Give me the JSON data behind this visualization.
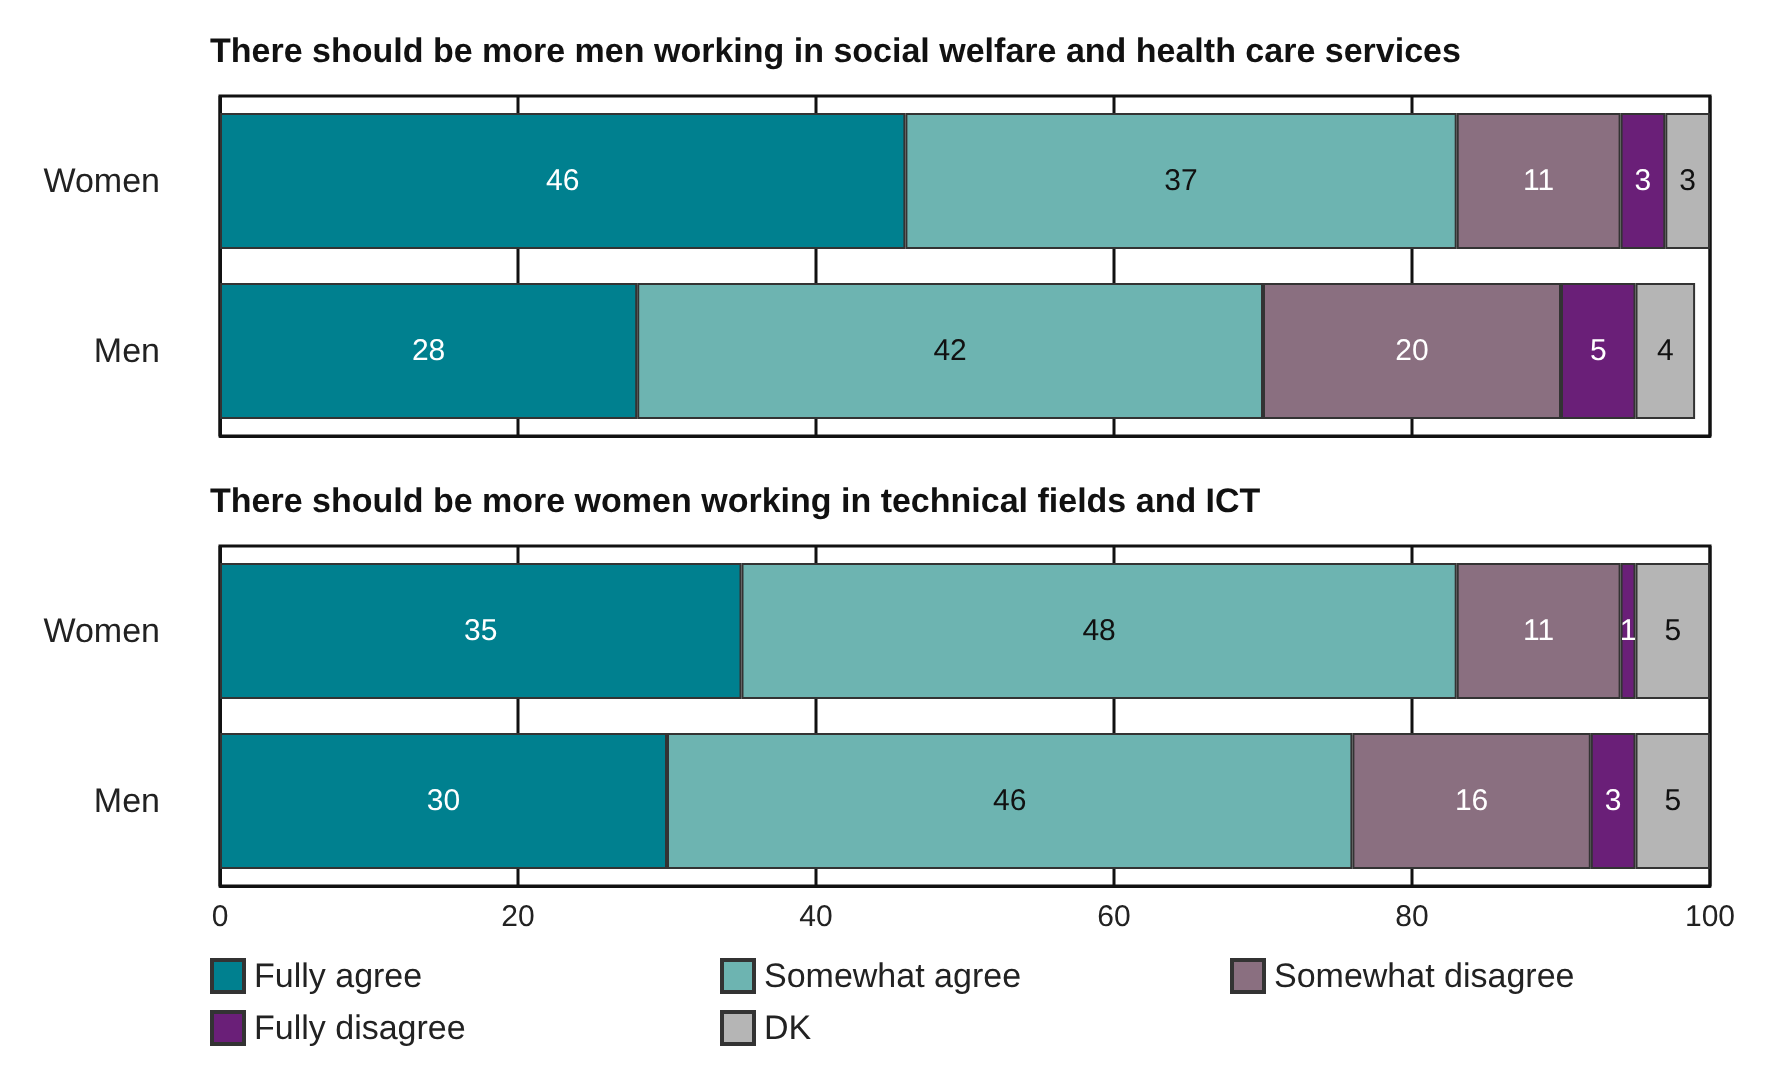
{
  "chart_data": [
    {
      "type": "bar",
      "orientation": "horizontal",
      "stacked": true,
      "title": "There should be more men working in social welfare and health care services",
      "categories": [
        "Women",
        "Men"
      ],
      "series": [
        {
          "color": "#00808f",
          "values": [
            46,
            28
          ]
        },
        {
          "color": "#6db4b1",
          "values": [
            37,
            42
          ]
        },
        {
          "color": "#8a6f80",
          "values": [
            11,
            20
          ]
        },
        {
          "color": "#6a1f78",
          "values": [
            3,
            5
          ]
        },
        {
          "color": "#b5b5b5",
          "values": [
            3,
            4
          ]
        }
      ],
      "xlim": [
        0,
        100
      ],
      "xticks": [
        0,
        20,
        40,
        60,
        80,
        100
      ],
      "grid": "x",
      "data_labels": true,
      "legend": false,
      "tick_labels": "y"
    },
    {
      "type": "bar",
      "orientation": "horizontal",
      "stacked": true,
      "title": "There should be more women working in technical fields and ICT",
      "categories": [
        "Women",
        "Men"
      ],
      "series": [
        {
          "name": "Fully agree",
          "color": "#00808f",
          "values": [
            35,
            30
          ]
        },
        {
          "name": "Somewhat agree",
          "color": "#6db4b1",
          "values": [
            48,
            46
          ]
        },
        {
          "name": "Somewhat disagree",
          "color": "#8a6f80",
          "values": [
            11,
            16
          ]
        },
        {
          "name": "Fully disagree",
          "color": "#6a1f78",
          "values": [
            1,
            3
          ]
        },
        {
          "name": "DK",
          "color": "#b5b5b5",
          "values": [
            5,
            5
          ]
        }
      ],
      "xlim": [
        0,
        100
      ],
      "xticks": [
        0,
        20,
        40,
        60,
        80,
        100
      ],
      "grid": "x",
      "data_labels": true,
      "legend": "bottom left"
    }
  ]
}
